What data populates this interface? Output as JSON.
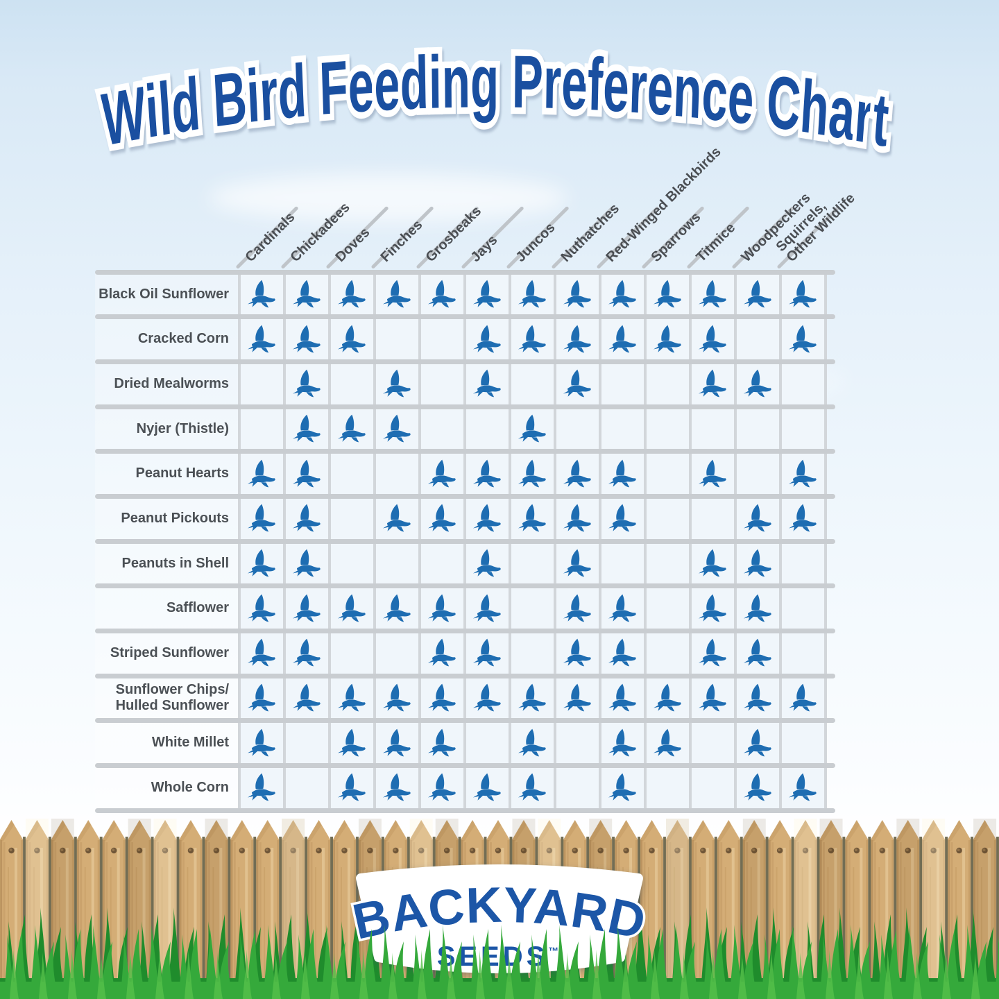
{
  "title": "Wild Bird Feeding Preference Chart",
  "logo": {
    "name": "BACKYARD",
    "sub": "SEEDS",
    "tm": "™"
  },
  "colors": {
    "title_blue": "#1a4fa0",
    "bird_blue": "#1e6db2",
    "logo_blue": "#1c56a7",
    "label_gray": "#4a4e53",
    "grid_line_gray": "#c9cdd1",
    "sky_blue": "#d9e9f6",
    "fence_tan": "#d4ad76",
    "grass_green": "#2f9b33"
  },
  "chart_data": {
    "type": "table",
    "title": "Wild Bird Feeding Preference Chart",
    "marker": "bird-icon",
    "marker_meaning": "species feeds on this food",
    "columns": [
      "Cardinals",
      "Chickadees",
      "Doves",
      "Finches",
      "Grosbeaks",
      "Jays",
      "Juncos",
      "Nuthatches",
      "Red-Winged Blackbirds",
      "Sparrows",
      "Titmice",
      "Woodpeckers",
      "Squirrels,\nOther Wildlife"
    ],
    "rows": [
      {
        "label": "Black Oil Sunflower",
        "values": [
          1,
          1,
          1,
          1,
          1,
          1,
          1,
          1,
          1,
          1,
          1,
          1,
          1
        ]
      },
      {
        "label": "Cracked Corn",
        "values": [
          1,
          1,
          1,
          0,
          0,
          1,
          1,
          1,
          1,
          1,
          1,
          0,
          1
        ]
      },
      {
        "label": "Dried Mealworms",
        "values": [
          0,
          1,
          0,
          1,
          0,
          1,
          0,
          1,
          0,
          0,
          1,
          1,
          0
        ]
      },
      {
        "label": "Nyjer (Thistle)",
        "values": [
          0,
          1,
          1,
          1,
          0,
          0,
          1,
          0,
          0,
          0,
          0,
          0,
          0
        ]
      },
      {
        "label": "Peanut Hearts",
        "values": [
          1,
          1,
          0,
          0,
          1,
          1,
          1,
          1,
          1,
          0,
          1,
          0,
          1
        ]
      },
      {
        "label": "Peanut Pickouts",
        "values": [
          1,
          1,
          0,
          1,
          1,
          1,
          1,
          1,
          1,
          0,
          0,
          1,
          1
        ]
      },
      {
        "label": "Peanuts in Shell",
        "values": [
          1,
          1,
          0,
          0,
          0,
          1,
          0,
          1,
          0,
          0,
          1,
          1,
          0
        ]
      },
      {
        "label": "Safflower",
        "values": [
          1,
          1,
          1,
          1,
          1,
          1,
          0,
          1,
          1,
          0,
          1,
          1,
          0
        ]
      },
      {
        "label": "Striped Sunflower",
        "values": [
          1,
          1,
          0,
          0,
          1,
          1,
          0,
          1,
          1,
          0,
          1,
          1,
          0
        ]
      },
      {
        "label": "Sunflower Chips/\nHulled Sunflower",
        "values": [
          1,
          1,
          1,
          1,
          1,
          1,
          1,
          1,
          1,
          1,
          1,
          1,
          1
        ]
      },
      {
        "label": "White Millet",
        "values": [
          1,
          0,
          1,
          1,
          1,
          0,
          1,
          0,
          1,
          1,
          0,
          1,
          0
        ]
      },
      {
        "label": "Whole Corn",
        "values": [
          1,
          0,
          1,
          1,
          1,
          1,
          1,
          0,
          1,
          0,
          0,
          1,
          1
        ]
      }
    ]
  }
}
